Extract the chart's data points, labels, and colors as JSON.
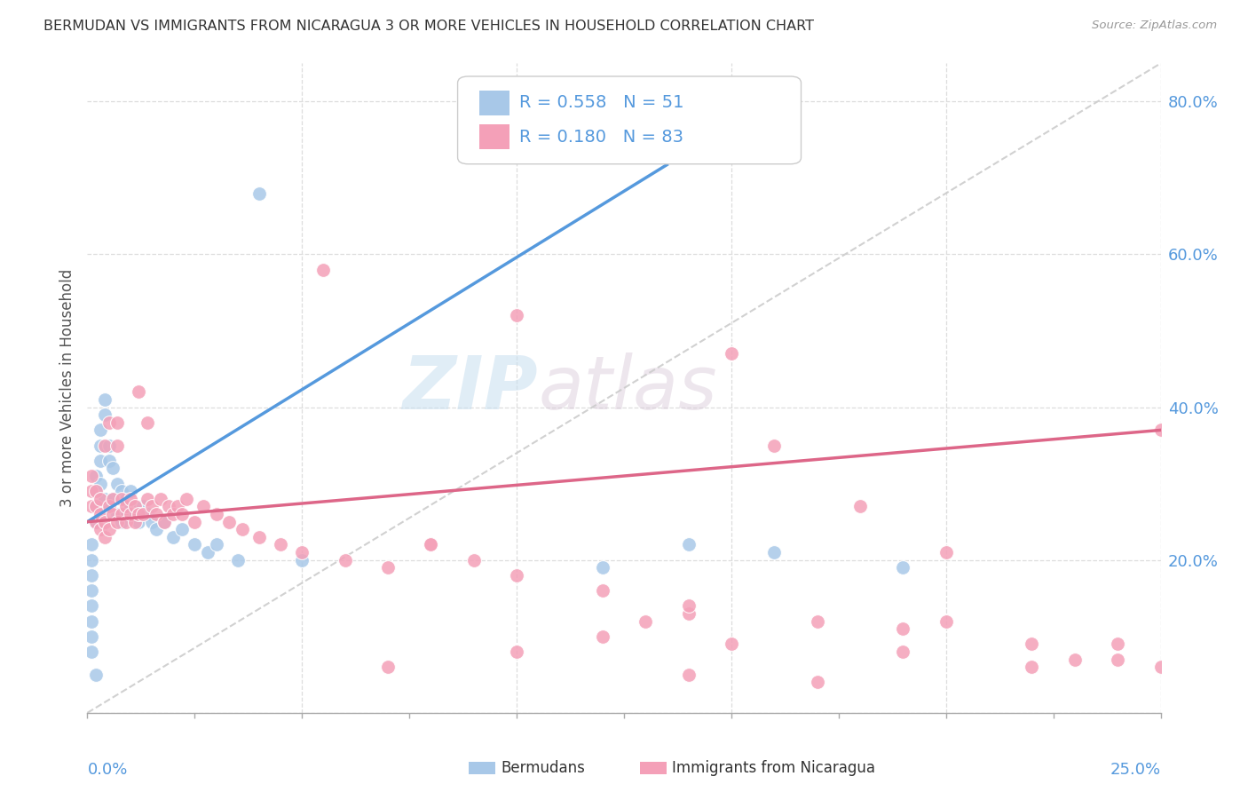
{
  "title": "BERMUDAN VS IMMIGRANTS FROM NICARAGUA 3 OR MORE VEHICLES IN HOUSEHOLD CORRELATION CHART",
  "source": "Source: ZipAtlas.com",
  "ylabel": "3 or more Vehicles in Household",
  "xmin": 0.0,
  "xmax": 0.25,
  "ymin": 0.0,
  "ymax": 0.85,
  "yticks": [
    0.0,
    0.2,
    0.4,
    0.6,
    0.8
  ],
  "ytick_labels": [
    "",
    "20.0%",
    "40.0%",
    "60.0%",
    "80.0%"
  ],
  "watermark_zip": "ZIP",
  "watermark_atlas": "atlas",
  "legend_text1": "R = 0.558   N = 51",
  "legend_text2": "R = 0.180   N = 83",
  "color_blue": "#a8c8e8",
  "color_pink": "#f4a0b8",
  "line_blue": "#5599dd",
  "line_pink": "#dd6688",
  "line_gray": "#cccccc",
  "grid_color": "#dddddd",
  "blue_x": [
    0.001,
    0.001,
    0.001,
    0.001,
    0.001,
    0.001,
    0.001,
    0.001,
    0.002,
    0.002,
    0.002,
    0.002,
    0.002,
    0.003,
    0.003,
    0.003,
    0.003,
    0.004,
    0.004,
    0.004,
    0.005,
    0.005,
    0.005,
    0.006,
    0.006,
    0.007,
    0.007,
    0.008,
    0.008,
    0.009,
    0.01,
    0.01,
    0.011,
    0.012,
    0.013,
    0.014,
    0.015,
    0.016,
    0.018,
    0.02,
    0.022,
    0.025,
    0.028,
    0.03,
    0.035,
    0.04,
    0.05,
    0.12,
    0.14,
    0.16,
    0.19
  ],
  "blue_y": [
    0.08,
    0.1,
    0.12,
    0.14,
    0.16,
    0.18,
    0.2,
    0.22,
    0.25,
    0.27,
    0.29,
    0.31,
    0.05,
    0.33,
    0.35,
    0.37,
    0.3,
    0.39,
    0.41,
    0.28,
    0.33,
    0.35,
    0.27,
    0.32,
    0.28,
    0.3,
    0.26,
    0.29,
    0.25,
    0.28,
    0.27,
    0.29,
    0.26,
    0.25,
    0.27,
    0.26,
    0.25,
    0.24,
    0.25,
    0.23,
    0.24,
    0.22,
    0.21,
    0.22,
    0.2,
    0.68,
    0.2,
    0.19,
    0.22,
    0.21,
    0.19
  ],
  "pink_x": [
    0.001,
    0.001,
    0.001,
    0.002,
    0.002,
    0.002,
    0.003,
    0.003,
    0.003,
    0.004,
    0.004,
    0.004,
    0.005,
    0.005,
    0.005,
    0.006,
    0.006,
    0.007,
    0.007,
    0.007,
    0.008,
    0.008,
    0.009,
    0.009,
    0.01,
    0.01,
    0.011,
    0.011,
    0.012,
    0.012,
    0.013,
    0.014,
    0.014,
    0.015,
    0.016,
    0.017,
    0.018,
    0.019,
    0.02,
    0.021,
    0.022,
    0.023,
    0.025,
    0.027,
    0.03,
    0.033,
    0.036,
    0.04,
    0.045,
    0.05,
    0.055,
    0.06,
    0.07,
    0.08,
    0.09,
    0.1,
    0.12,
    0.14,
    0.15,
    0.17,
    0.19,
    0.2,
    0.22,
    0.23,
    0.24,
    0.25,
    0.1,
    0.16,
    0.18,
    0.2,
    0.07,
    0.08,
    0.1,
    0.12,
    0.14,
    0.15,
    0.17,
    0.19,
    0.22,
    0.14,
    0.24,
    0.25,
    0.13
  ],
  "pink_y": [
    0.27,
    0.29,
    0.31,
    0.25,
    0.27,
    0.29,
    0.24,
    0.26,
    0.28,
    0.23,
    0.25,
    0.35,
    0.27,
    0.24,
    0.38,
    0.26,
    0.28,
    0.25,
    0.35,
    0.38,
    0.26,
    0.28,
    0.25,
    0.27,
    0.26,
    0.28,
    0.25,
    0.27,
    0.26,
    0.42,
    0.26,
    0.28,
    0.38,
    0.27,
    0.26,
    0.28,
    0.25,
    0.27,
    0.26,
    0.27,
    0.26,
    0.28,
    0.25,
    0.27,
    0.26,
    0.25,
    0.24,
    0.23,
    0.22,
    0.21,
    0.58,
    0.2,
    0.19,
    0.22,
    0.2,
    0.18,
    0.16,
    0.13,
    0.47,
    0.12,
    0.11,
    0.21,
    0.09,
    0.07,
    0.07,
    0.37,
    0.52,
    0.35,
    0.27,
    0.12,
    0.06,
    0.22,
    0.08,
    0.1,
    0.05,
    0.09,
    0.04,
    0.08,
    0.06,
    0.14,
    0.09,
    0.06,
    0.12
  ]
}
